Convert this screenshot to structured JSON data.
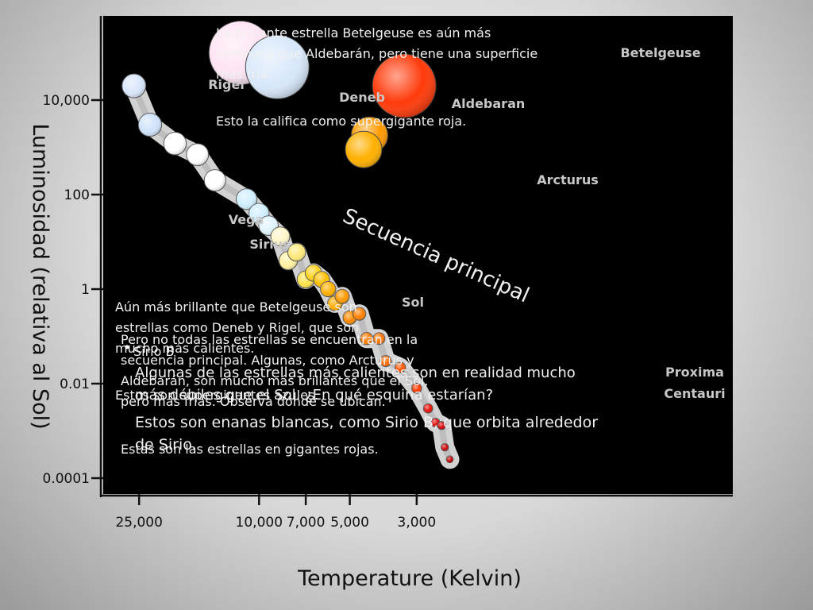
{
  "chart_data": {
    "type": "scatter",
    "title": "",
    "xlabel": "Temperature (Kelvin)",
    "ylabel": "Luminosidad (relativa al Sol)",
    "x_ticks": [
      {
        "value": 25000,
        "label": "25,000"
      },
      {
        "value": 10000,
        "label": "10,000"
      },
      {
        "value": 7000,
        "label": "7,000"
      },
      {
        "value": 5000,
        "label": "5,000"
      },
      {
        "value": 3000,
        "label": "3,000"
      }
    ],
    "y_ticks": [
      {
        "value": 10000,
        "label": "10,000"
      },
      {
        "value": 100,
        "label": "100"
      },
      {
        "value": 1,
        "label": "1"
      },
      {
        "value": 0.01,
        "label": "0.01"
      },
      {
        "value": 0.0001,
        "label": "0.0001"
      }
    ],
    "y_scale": "log",
    "x_direction": "decreasing",
    "band_label": "Secuencia principal",
    "main_sequence": [
      {
        "t": 26000,
        "l": 20000,
        "color": "#d8e6fb"
      },
      {
        "t": 23000,
        "l": 3000,
        "color": "#cfe3fb"
      },
      {
        "t": 19000,
        "l": 1200,
        "color": "#ffffff"
      },
      {
        "t": 16000,
        "l": 700,
        "color": "#ffffff"
      },
      {
        "t": 14000,
        "l": 200,
        "color": "#ffffff"
      },
      {
        "t": 11000,
        "l": 80,
        "color": "#cfefff"
      },
      {
        "t": 10000,
        "l": 40,
        "color": "#cfefff"
      },
      {
        "t": 9300,
        "l": 22,
        "color": "#e0f4ff"
      },
      {
        "t": 8500,
        "l": 13,
        "color": "#fff6c8"
      },
      {
        "t": 8000,
        "l": 4,
        "color": "#fff2a0"
      },
      {
        "t": 7500,
        "l": 6,
        "color": "#ffe97a"
      },
      {
        "t": 7000,
        "l": 1.6,
        "color": "#ffe34a"
      },
      {
        "t": 6600,
        "l": 2.2,
        "color": "#ffd21e"
      },
      {
        "t": 6200,
        "l": 1.6,
        "color": "#ffc000"
      },
      {
        "t": 5900,
        "l": 1,
        "color": "#ffb000"
      },
      {
        "t": 5600,
        "l": 0.5,
        "color": "#ffaa00"
      },
      {
        "t": 5300,
        "l": 0.7,
        "color": "#ff9a00"
      },
      {
        "t": 5000,
        "l": 0.25,
        "color": "#ff8a00"
      },
      {
        "t": 4650,
        "l": 0.3,
        "color": "#ff8000"
      },
      {
        "t": 4400,
        "l": 0.09,
        "color": "#ff7a00"
      },
      {
        "t": 4000,
        "l": 0.09,
        "color": "#ff7400"
      },
      {
        "t": 3800,
        "l": 0.03,
        "color": "#ff6a00"
      },
      {
        "t": 3400,
        "l": 0.022,
        "color": "#ff5200"
      },
      {
        "t": 3000,
        "l": 0.008,
        "color": "#ff3a00"
      },
      {
        "t": 2750,
        "l": 0.003,
        "color": "#e8100a"
      },
      {
        "t": 2600,
        "l": 0.0015,
        "color": "#e00a0a"
      },
      {
        "t": 2480,
        "l": 0.0013,
        "color": "#d80808"
      },
      {
        "t": 2420,
        "l": 0.00045,
        "color": "#d00606"
      },
      {
        "t": 2330,
        "l": 0.00025,
        "color": "#c80505"
      }
    ],
    "named_stars": [
      {
        "name": "Betelgeuse",
        "t": 3300,
        "l": 20000,
        "radius": 40,
        "color": "#ff3a0a",
        "label_dx": 80,
        "label_dy": -37
      },
      {
        "name": "Rigel",
        "t": 11500,
        "l": 100000,
        "radius": 40,
        "color": "#ffe4f4",
        "label_dx": -40,
        "label_dy": 8
      },
      {
        "name": "Deneb",
        "t": 8700,
        "l": 50000,
        "radius": 40,
        "color": "#d8e8fb",
        "label_dx": 33,
        "label_dy": 53
      },
      {
        "name": "Aldebaran",
        "t": 4300,
        "l": 1800,
        "radius": 23,
        "color": "#ff9a00",
        "label_dx": -65,
        "label_dy": -30
      },
      {
        "name": "Arcturus",
        "t": 4500,
        "l": 900,
        "radius": 23,
        "color": "#ffb000",
        "label_dx": 50,
        "label_dy": 40
      },
      {
        "name": "Vega",
        "t": 15000,
        "l": 25,
        "radius": 0,
        "color": "#ffffff",
        "label_dx": 0,
        "label_dy": 0
      },
      {
        "name": "Sirius",
        "t": 14000,
        "l": 10,
        "radius": 0,
        "color": "#ffffff",
        "label_dx": 0,
        "label_dy": 0
      },
      {
        "name": "Sol",
        "t": 5950,
        "l": 0.45,
        "radius": 0,
        "color": "#ffffff",
        "label_dx": 0,
        "label_dy": 0
      },
      {
        "name": "Proxima Centauri",
        "t": 2600,
        "l": 0.01,
        "radius": 0,
        "color": "#ffffff",
        "label_dx": 0,
        "label_dy": 0
      }
    ],
    "annotations": [
      "La brillante estrella Betelgeuse es aún más luminosa que Aldebarán, pero tiene una superficie más fría.",
      "Esto la califica como  supergigante roja.",
      "Aún más brillante que Betelgeuse son estrellas como Deneb y Rigel, que son mucho más calientes.",
      "Pero no todas las estrellas se encuentran en la secuencia principal. Algunas, como Arcturus y Aldebarán, son mucho más brillantes que el Sol, pero más frías. Observa dónde se ubican.",
      "Sirio B",
      "Algunas de las estrellas más calientes son en realidad mucho más débiles que el Sol. ¿En qué esquina estarían?",
      "Estos son supergigantes azules.",
      "Estos son enanas blancas, como Sirio B, que orbita alrededor de Sirio.",
      "Estas son las estrellas en gigantes rojas."
    ]
  }
}
